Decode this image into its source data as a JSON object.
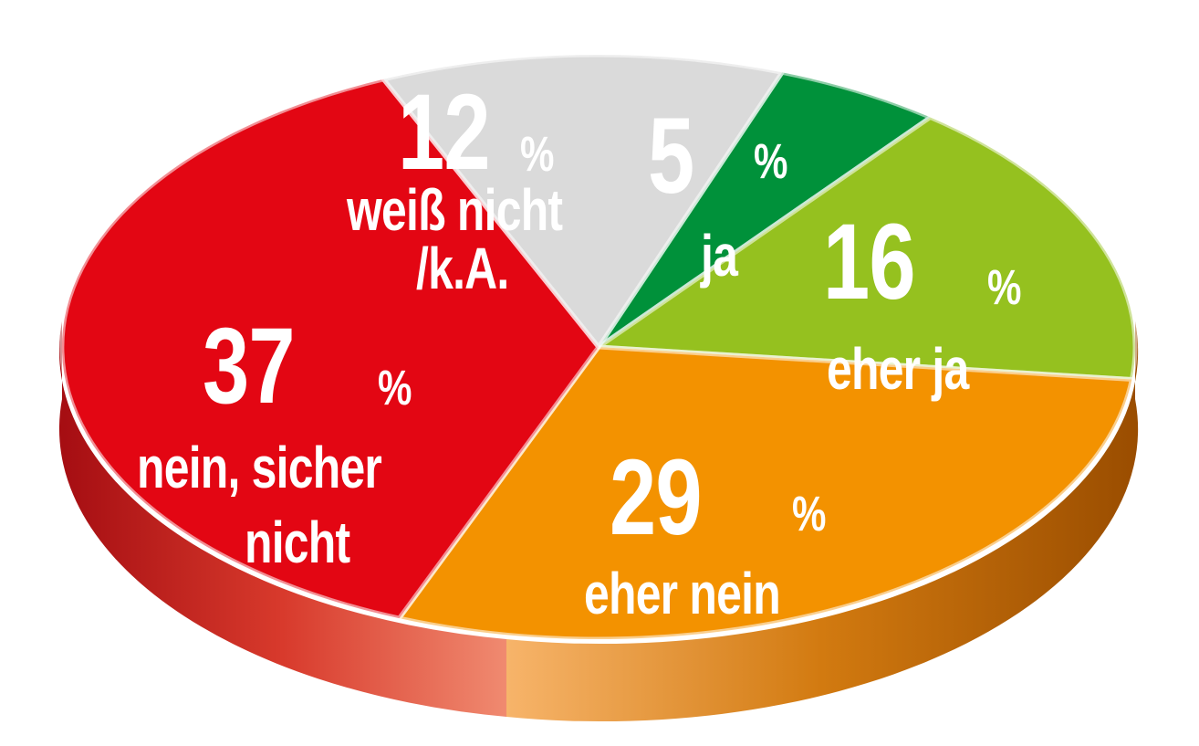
{
  "chart_data": {
    "type": "pie",
    "title": "",
    "slices": [
      {
        "label": "ja",
        "value": 5,
        "number": "5",
        "percent_sign": "%",
        "color": "#00913a"
      },
      {
        "label": "eher ja",
        "value": 16,
        "number": "16",
        "percent_sign": "%",
        "color": "#95c11f"
      },
      {
        "label": "eher nein",
        "value": 29,
        "number": "29",
        "percent_sign": "%",
        "color": "#f39200"
      },
      {
        "label": "nein, sicher nicht",
        "value": 37,
        "number": "37",
        "percent_sign": "%",
        "color": "#e30613"
      },
      {
        "label": "weiß nicht /k.A.",
        "value": 12,
        "number": "12",
        "percent_sign": "%",
        "color": "#dadada"
      }
    ],
    "labels": {
      "ja": {
        "line1": "ja"
      },
      "eher_ja": {
        "line1": "eher ja"
      },
      "eher_nein": {
        "line1": "eher nein"
      },
      "nein": {
        "line1": "nein, sicher",
        "line2": "nicht"
      },
      "weiss": {
        "line1": "weiß nicht",
        "line2": "/k.A."
      }
    }
  }
}
